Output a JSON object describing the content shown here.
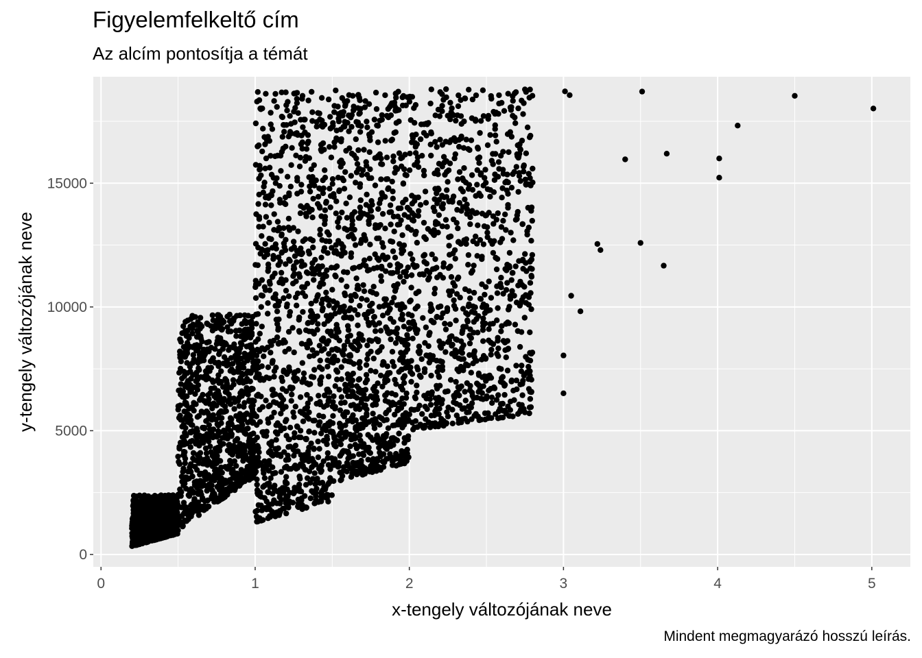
{
  "chart_data": {
    "type": "scatter",
    "title": "Figyelemfelkeltő cím",
    "subtitle": "Az alcím pontosítja a témát",
    "caption": "Mindent megmagyarázó hosszú leírás.",
    "xlabel": "x-tengely változójának neve",
    "ylabel": "y-tengely változójának neve",
    "xlim": [
      -0.05,
      5.25
    ],
    "ylim": [
      -500,
      19300
    ],
    "x_ticks": [
      0,
      1,
      2,
      3,
      4,
      5
    ],
    "x_tick_labels": [
      "0",
      "1",
      "2",
      "3",
      "4",
      "5"
    ],
    "y_ticks": [
      0,
      5000,
      10000,
      15000
    ],
    "y_tick_labels": [
      "0",
      "5000",
      "10000",
      "15000"
    ],
    "grid": true,
    "legend": "none",
    "panel_background": "#ebebeb",
    "grid_color": "#ffffff",
    "point_color": "#000000",
    "notable_points": [
      {
        "x": 5.01,
        "y": 18018
      },
      {
        "x": 4.5,
        "y": 18531
      },
      {
        "x": 4.13,
        "y": 17329
      },
      {
        "x": 4.01,
        "y": 15999
      },
      {
        "x": 4.01,
        "y": 15223
      },
      {
        "x": 3.67,
        "y": 16193
      },
      {
        "x": 3.65,
        "y": 11668
      },
      {
        "x": 3.51,
        "y": 18701
      },
      {
        "x": 3.5,
        "y": 12587
      },
      {
        "x": 3.4,
        "y": 15964
      },
      {
        "x": 3.24,
        "y": 12300
      },
      {
        "x": 3.22,
        "y": 12545
      },
      {
        "x": 3.11,
        "y": 9823
      },
      {
        "x": 3.05,
        "y": 10453
      },
      {
        "x": 3.04,
        "y": 18559
      },
      {
        "x": 3.01,
        "y": 18710
      },
      {
        "x": 3.0,
        "y": 6512
      },
      {
        "x": 3.0,
        "y": 8040
      },
      {
        "x": 2.8,
        "y": 15030
      },
      {
        "x": 2.75,
        "y": 18788
      },
      {
        "x": 2.72,
        "y": 6870
      },
      {
        "x": 2.5,
        "y": 6300
      }
    ],
    "clusters": [
      {
        "x_range": [
          0.2,
          0.5
        ],
        "y_range": [
          326,
          2400
        ]
      },
      {
        "x_range": [
          0.5,
          1.0
        ],
        "y_range": [
          1000,
          9700
        ]
      },
      {
        "x_range": [
          1.0,
          1.5
        ],
        "y_range": [
          1300,
          18700
        ]
      },
      {
        "x_range": [
          1.5,
          2.0
        ],
        "y_range": [
          2900,
          18800
        ]
      },
      {
        "x_range": [
          2.0,
          2.8
        ],
        "y_range": [
          5000,
          18800
        ]
      }
    ]
  }
}
